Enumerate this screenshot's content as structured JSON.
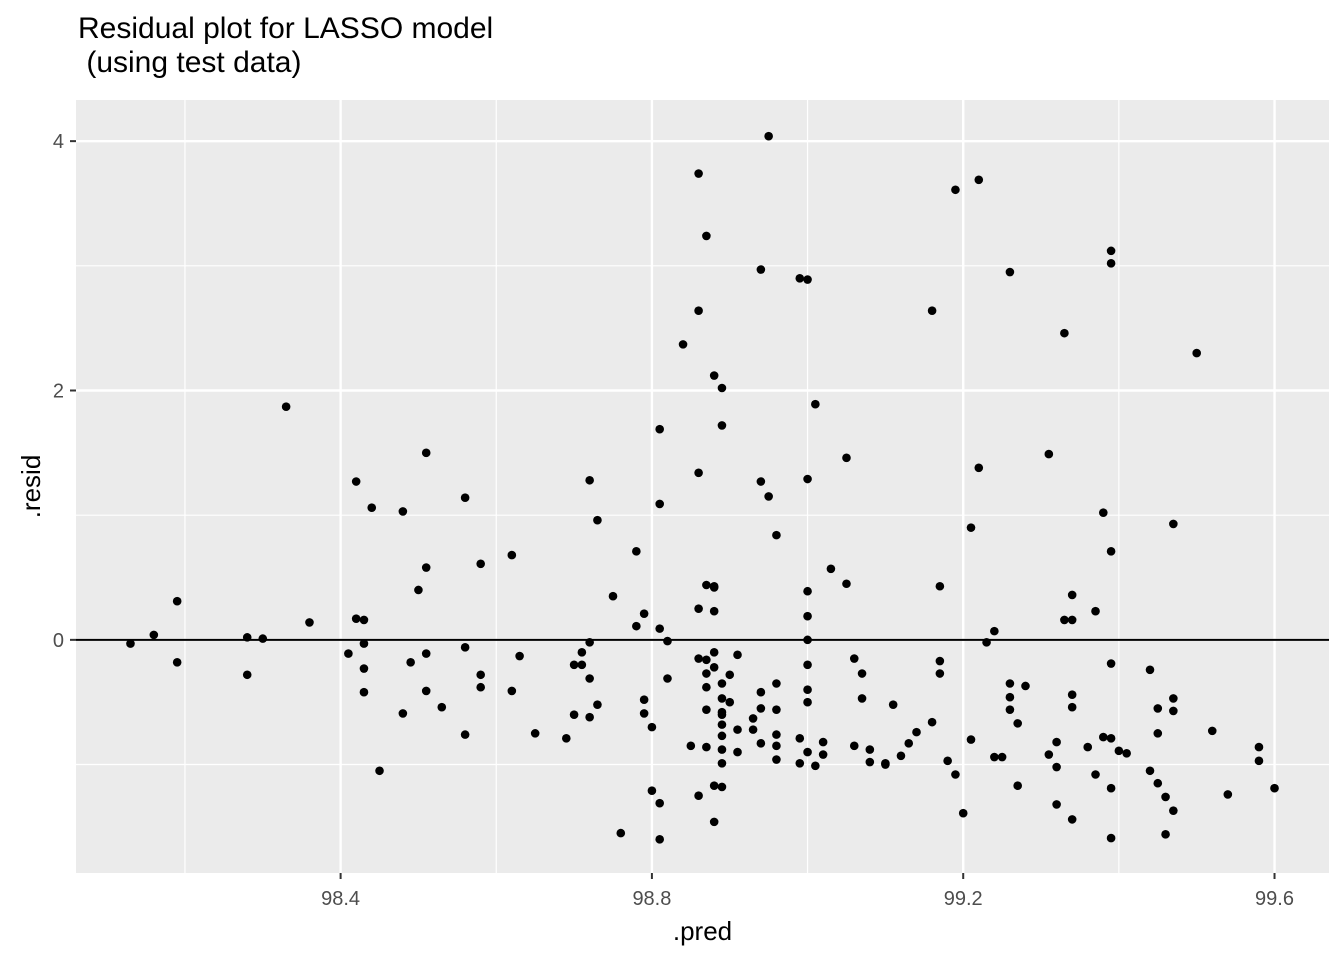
{
  "chart_data": {
    "type": "scatter",
    "title_line1": "Residual plot for LASSO model",
    "title_line2": " (using test data)",
    "xlabel": ".pred",
    "ylabel": ".resid",
    "xlim": [
      98.06,
      99.67
    ],
    "ylim": [
      -1.87,
      4.33
    ],
    "xticks": [
      98.4,
      98.8,
      99.2,
      99.6
    ],
    "xtick_labels": [
      "98.4",
      "98.8",
      "99.2",
      "99.6"
    ],
    "yticks": [
      0,
      2,
      4
    ],
    "ytick_labels": [
      "0",
      "2",
      "4"
    ],
    "reference_line_y": 0,
    "grid": true,
    "background": "#EBEBEB",
    "point_color": "#000000",
    "points": [
      [
        98.13,
        -0.03
      ],
      [
        98.16,
        0.04
      ],
      [
        98.19,
        0.31
      ],
      [
        98.19,
        -0.18
      ],
      [
        98.28,
        0.02
      ],
      [
        98.28,
        -0.28
      ],
      [
        98.3,
        0.01
      ],
      [
        98.33,
        1.87
      ],
      [
        98.36,
        0.14
      ],
      [
        98.41,
        -0.11
      ],
      [
        98.42,
        1.27
      ],
      [
        98.42,
        0.17
      ],
      [
        98.43,
        -0.03
      ],
      [
        98.43,
        -0.23
      ],
      [
        98.43,
        -0.42
      ],
      [
        98.43,
        0.16
      ],
      [
        98.44,
        1.06
      ],
      [
        98.45,
        -1.05
      ],
      [
        98.48,
        1.03
      ],
      [
        98.48,
        -0.59
      ],
      [
        98.49,
        -0.18
      ],
      [
        98.5,
        0.4
      ],
      [
        98.51,
        1.5
      ],
      [
        98.51,
        0.58
      ],
      [
        98.51,
        -0.11
      ],
      [
        98.51,
        -0.41
      ],
      [
        98.53,
        -0.54
      ],
      [
        98.56,
        1.14
      ],
      [
        98.56,
        -0.06
      ],
      [
        98.56,
        -0.76
      ],
      [
        98.58,
        0.61
      ],
      [
        98.58,
        -0.28
      ],
      [
        98.58,
        -0.38
      ],
      [
        98.62,
        0.68
      ],
      [
        98.62,
        -0.41
      ],
      [
        98.63,
        -0.13
      ],
      [
        98.65,
        -0.75
      ],
      [
        98.69,
        -0.79
      ],
      [
        98.7,
        -0.6
      ],
      [
        98.7,
        -0.2
      ],
      [
        98.71,
        -0.1
      ],
      [
        98.71,
        -0.2
      ],
      [
        98.72,
        1.28
      ],
      [
        98.72,
        -0.02
      ],
      [
        98.72,
        -0.31
      ],
      [
        98.72,
        -0.62
      ],
      [
        98.73,
        -0.52
      ],
      [
        98.73,
        0.96
      ],
      [
        98.75,
        0.35
      ],
      [
        98.76,
        -1.55
      ],
      [
        98.78,
        0.71
      ],
      [
        98.78,
        0.11
      ],
      [
        98.79,
        0.21
      ],
      [
        98.79,
        -0.48
      ],
      [
        98.79,
        -0.59
      ],
      [
        98.8,
        -0.7
      ],
      [
        98.8,
        -1.21
      ],
      [
        98.81,
        1.69
      ],
      [
        98.81,
        0.09
      ],
      [
        98.81,
        1.09
      ],
      [
        98.81,
        -1.31
      ],
      [
        98.81,
        -1.6
      ],
      [
        98.82,
        -0.01
      ],
      [
        98.82,
        -0.31
      ],
      [
        98.84,
        2.37
      ],
      [
        98.85,
        -0.85
      ],
      [
        98.86,
        -1.25
      ],
      [
        98.86,
        -0.15
      ],
      [
        98.86,
        3.74
      ],
      [
        98.86,
        2.64
      ],
      [
        98.86,
        1.34
      ],
      [
        98.87,
        3.24
      ],
      [
        98.87,
        0.44
      ],
      [
        98.86,
        0.25
      ],
      [
        98.87,
        -0.16
      ],
      [
        98.87,
        -0.27
      ],
      [
        98.87,
        -0.56
      ],
      [
        98.87,
        -0.86
      ],
      [
        98.87,
        -0.38
      ],
      [
        98.88,
        0.43
      ],
      [
        98.88,
        0.23
      ],
      [
        98.88,
        -1.17
      ],
      [
        98.88,
        -1.46
      ],
      [
        98.88,
        2.12
      ],
      [
        98.89,
        2.02
      ],
      [
        98.89,
        1.72
      ],
      [
        98.88,
        0.42
      ],
      [
        98.88,
        -0.1
      ],
      [
        98.88,
        -0.22
      ],
      [
        98.89,
        -0.35
      ],
      [
        98.89,
        -0.47
      ],
      [
        98.89,
        -0.58
      ],
      [
        98.89,
        -0.6
      ],
      [
        98.89,
        -0.68
      ],
      [
        98.89,
        -0.77
      ],
      [
        98.89,
        -0.88
      ],
      [
        98.89,
        -0.99
      ],
      [
        98.89,
        -1.18
      ],
      [
        98.9,
        -0.5
      ],
      [
        98.9,
        -0.28
      ],
      [
        98.91,
        -0.12
      ],
      [
        98.91,
        -0.72
      ],
      [
        98.91,
        -0.9
      ],
      [
        98.93,
        -0.63
      ],
      [
        98.93,
        -0.72
      ],
      [
        98.94,
        -0.42
      ],
      [
        98.94,
        2.97
      ],
      [
        98.94,
        1.27
      ],
      [
        98.94,
        -0.55
      ],
      [
        98.94,
        -0.83
      ],
      [
        98.95,
        4.04
      ],
      [
        98.95,
        1.15
      ],
      [
        98.96,
        0.84
      ],
      [
        98.96,
        -0.35
      ],
      [
        98.96,
        -0.56
      ],
      [
        98.96,
        -0.76
      ],
      [
        98.96,
        -0.85
      ],
      [
        98.96,
        -0.96
      ],
      [
        98.99,
        -0.99
      ],
      [
        98.99,
        -0.79
      ],
      [
        98.99,
        2.9
      ],
      [
        99.0,
        2.89
      ],
      [
        99.0,
        1.29
      ],
      [
        99.0,
        0.39
      ],
      [
        99.0,
        0.19
      ],
      [
        99.0,
        0.0
      ],
      [
        99.0,
        -0.2
      ],
      [
        99.0,
        -0.4
      ],
      [
        99.0,
        -0.5
      ],
      [
        99.0,
        -0.9
      ],
      [
        99.01,
        -1.01
      ],
      [
        99.01,
        1.89
      ],
      [
        99.02,
        -0.82
      ],
      [
        99.02,
        -0.92
      ],
      [
        99.03,
        0.57
      ],
      [
        99.05,
        1.46
      ],
      [
        99.05,
        0.45
      ],
      [
        99.06,
        -0.15
      ],
      [
        99.06,
        -0.85
      ],
      [
        99.07,
        -0.27
      ],
      [
        99.07,
        -0.47
      ],
      [
        99.08,
        -0.88
      ],
      [
        99.08,
        -0.98
      ],
      [
        99.1,
        -0.99
      ],
      [
        99.1,
        -1.0
      ],
      [
        99.11,
        -0.52
      ],
      [
        99.12,
        -0.93
      ],
      [
        99.13,
        -0.83
      ],
      [
        99.14,
        -0.74
      ],
      [
        99.16,
        2.64
      ],
      [
        99.16,
        -0.66
      ],
      [
        99.17,
        0.43
      ],
      [
        99.17,
        -0.17
      ],
      [
        99.17,
        -0.27
      ],
      [
        99.18,
        -0.97
      ],
      [
        99.19,
        -1.08
      ],
      [
        99.19,
        3.61
      ],
      [
        99.2,
        -1.39
      ],
      [
        99.21,
        0.9
      ],
      [
        99.21,
        -0.8
      ],
      [
        99.22,
        3.69
      ],
      [
        99.22,
        1.38
      ],
      [
        99.23,
        -0.02
      ],
      [
        99.24,
        0.07
      ],
      [
        99.24,
        -0.94
      ],
      [
        99.25,
        -0.94
      ],
      [
        99.26,
        2.95
      ],
      [
        99.26,
        -0.35
      ],
      [
        99.26,
        -0.46
      ],
      [
        99.26,
        -0.56
      ],
      [
        99.27,
        -0.67
      ],
      [
        99.27,
        -1.17
      ],
      [
        99.28,
        -0.37
      ],
      [
        99.31,
        1.49
      ],
      [
        99.31,
        -0.92
      ],
      [
        99.32,
        -1.02
      ],
      [
        99.32,
        -0.82
      ],
      [
        99.32,
        -1.32
      ],
      [
        99.33,
        2.46
      ],
      [
        99.33,
        0.16
      ],
      [
        99.34,
        0.36
      ],
      [
        99.34,
        0.16
      ],
      [
        99.34,
        -0.44
      ],
      [
        99.34,
        -0.54
      ],
      [
        99.34,
        -1.44
      ],
      [
        99.36,
        -0.86
      ],
      [
        99.37,
        0.23
      ],
      [
        99.37,
        -1.08
      ],
      [
        99.38,
        1.02
      ],
      [
        99.38,
        -0.78
      ],
      [
        99.39,
        3.02
      ],
      [
        99.39,
        3.12
      ],
      [
        99.39,
        0.71
      ],
      [
        99.39,
        -0.19
      ],
      [
        99.39,
        -0.79
      ],
      [
        99.39,
        -1.19
      ],
      [
        99.39,
        -1.59
      ],
      [
        99.4,
        -0.89
      ],
      [
        99.41,
        -0.91
      ],
      [
        99.44,
        -0.24
      ],
      [
        99.44,
        -1.05
      ],
      [
        99.45,
        -0.55
      ],
      [
        99.45,
        -0.75
      ],
      [
        99.45,
        -1.15
      ],
      [
        99.46,
        -1.26
      ],
      [
        99.46,
        -1.56
      ],
      [
        99.47,
        -0.47
      ],
      [
        99.47,
        -0.57
      ],
      [
        99.47,
        -1.37
      ],
      [
        99.47,
        0.93
      ],
      [
        99.5,
        2.3
      ],
      [
        99.52,
        -0.73
      ],
      [
        99.54,
        -1.24
      ],
      [
        99.58,
        -0.86
      ],
      [
        99.58,
        -0.97
      ],
      [
        99.6,
        -1.19
      ]
    ]
  }
}
